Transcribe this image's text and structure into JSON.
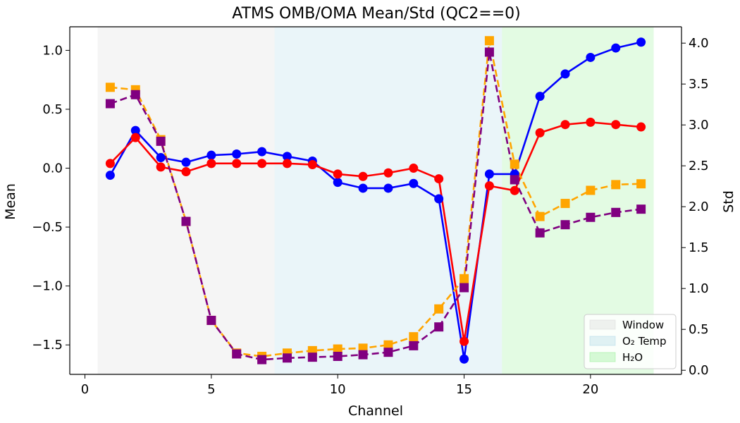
{
  "chart_data": {
    "type": "line",
    "title": "ATMS OMB/OMA Mean/Std (QC2==0)",
    "xlabel": "Channel",
    "ylabel_left": "Mean",
    "ylabel_right": "Std",
    "xlim": [
      -0.6,
      23.6
    ],
    "ylim_left": [
      -1.75,
      1.2
    ],
    "ylim_right": [
      -0.05,
      4.2
    ],
    "x_ticks": [
      0,
      5,
      10,
      15,
      20
    ],
    "y_ticks_left": [
      -1.5,
      -1.0,
      -0.5,
      0.0,
      0.5,
      1.0
    ],
    "y_ticks_right": [
      0.0,
      0.5,
      1.0,
      1.5,
      2.0,
      2.5,
      3.0,
      3.5,
      4.0
    ],
    "x": [
      1,
      2,
      3,
      4,
      5,
      6,
      7,
      8,
      9,
      10,
      11,
      12,
      13,
      14,
      15,
      16,
      17,
      18,
      19,
      20,
      21,
      22
    ],
    "series": [
      {
        "axis": "left",
        "color": "#0000ff",
        "marker": "circle",
        "linestyle": "solid",
        "values": [
          -0.06,
          0.32,
          0.09,
          0.05,
          0.11,
          0.12,
          0.14,
          0.1,
          0.06,
          -0.12,
          -0.17,
          -0.17,
          -0.13,
          -0.26,
          -1.62,
          -0.05,
          -0.05,
          0.61,
          0.8,
          0.94,
          1.02,
          1.07
        ]
      },
      {
        "axis": "left",
        "color": "#ff0000",
        "marker": "circle",
        "linestyle": "solid",
        "values": [
          0.04,
          0.26,
          0.01,
          -0.03,
          0.04,
          0.04,
          0.04,
          0.04,
          0.03,
          -0.05,
          -0.07,
          -0.04,
          0.0,
          -0.09,
          -1.47,
          -0.15,
          -0.19,
          0.3,
          0.37,
          0.39,
          0.37,
          0.35
        ]
      },
      {
        "axis": "right",
        "color": "#ffa500",
        "marker": "square",
        "linestyle": "dashed",
        "values": [
          3.46,
          3.43,
          2.82,
          1.82,
          0.61,
          0.21,
          0.17,
          0.21,
          0.24,
          0.26,
          0.27,
          0.31,
          0.41,
          0.75,
          1.12,
          4.03,
          2.52,
          1.88,
          2.04,
          2.2,
          2.27,
          2.28
        ]
      },
      {
        "axis": "right",
        "color": "#800080",
        "marker": "square",
        "linestyle": "dashed",
        "values": [
          3.26,
          3.37,
          2.8,
          1.82,
          0.61,
          0.2,
          0.13,
          0.15,
          0.16,
          0.17,
          0.19,
          0.22,
          0.3,
          0.53,
          1.01,
          3.89,
          2.33,
          1.68,
          1.78,
          1.87,
          1.93,
          1.97
        ]
      }
    ],
    "bands": [
      {
        "name": "Window",
        "from": 0.5,
        "to": 7.5,
        "color": "#d8d8d8"
      },
      {
        "name": "O₂ Temp",
        "from": 7.5,
        "to": 16.5,
        "color": "#add8e6"
      },
      {
        "name": "H₂O",
        "from": 16.5,
        "to": 22.5,
        "color": "#90ee90"
      }
    ],
    "legend_position": "lower-right",
    "grid": false
  }
}
